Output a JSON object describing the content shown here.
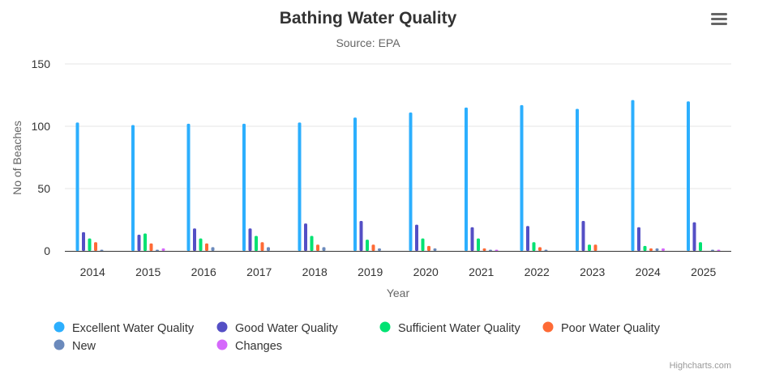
{
  "chart_data": {
    "type": "bar",
    "title": "Bathing Water Quality",
    "subtitle": "Source: EPA",
    "xlabel": "Year",
    "ylabel": "No of Beaches",
    "categories": [
      "2014",
      "2015",
      "2016",
      "2017",
      "2018",
      "2019",
      "2020",
      "2021",
      "2022",
      "2023",
      "2024",
      "2025"
    ],
    "ylim": [
      0,
      150
    ],
    "yticks": [
      0,
      50,
      100,
      150
    ],
    "grid": true,
    "legend_position": "bottom-left",
    "series": [
      {
        "name": "Excellent Water Quality",
        "color": "#2caffe",
        "values": [
          103,
          101,
          102,
          102,
          103,
          107,
          111,
          115,
          117,
          114,
          121,
          120
        ]
      },
      {
        "name": "Good Water Quality",
        "color": "#544fc5",
        "values": [
          15,
          13,
          18,
          18,
          22,
          24,
          21,
          19,
          20,
          24,
          19,
          23
        ]
      },
      {
        "name": "Sufficient Water Quality",
        "color": "#00e272",
        "values": [
          10,
          14,
          10,
          12,
          12,
          9,
          10,
          10,
          7,
          5,
          4,
          7
        ]
      },
      {
        "name": "Poor Water Quality",
        "color": "#fe6a35",
        "values": [
          7,
          6,
          6,
          7,
          5,
          5,
          4,
          2,
          3,
          5,
          2,
          0
        ]
      },
      {
        "name": "New",
        "color": "#6b8abc",
        "values": [
          1,
          1,
          3,
          3,
          3,
          2,
          2,
          1,
          1,
          0,
          2,
          1
        ]
      },
      {
        "name": "Changes",
        "color": "#d568fb",
        "values": [
          0,
          2,
          0,
          0,
          0,
          0,
          0,
          1,
          0,
          0,
          2,
          1
        ]
      }
    ]
  },
  "credits": "Highcharts.com",
  "menu_icon": "hamburger-menu-icon"
}
